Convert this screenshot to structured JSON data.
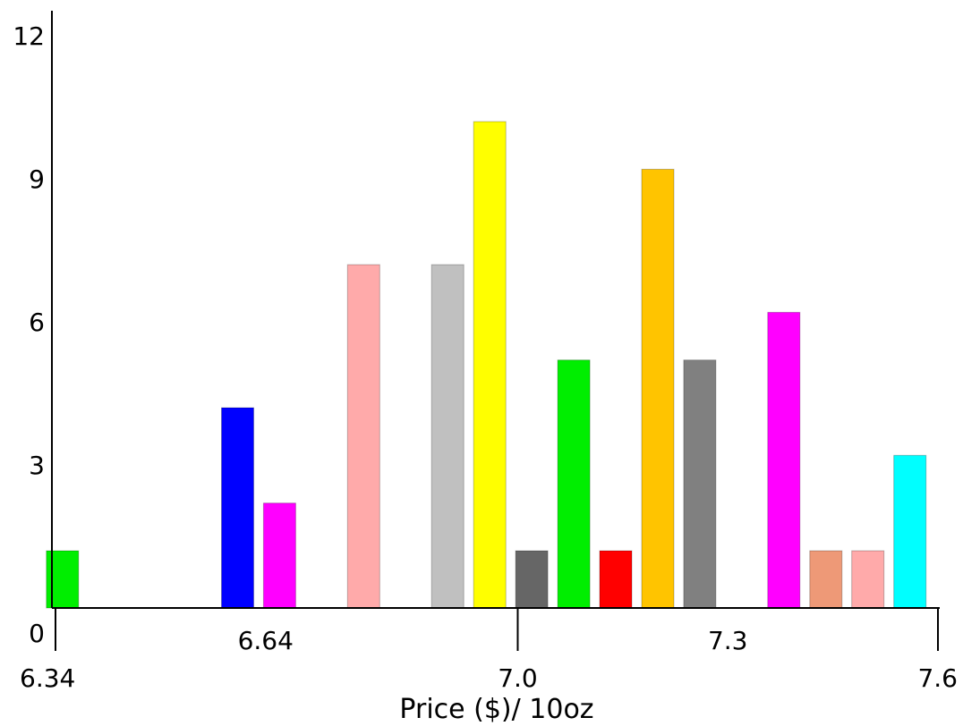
{
  "chart_data": {
    "type": "bar",
    "title": "",
    "xlabel": "Price ($)/ 10oz",
    "ylabel": "",
    "ylim": [
      0,
      12
    ],
    "xlim": [
      6.34,
      7.6
    ],
    "y_ticks": [
      "0",
      "3",
      "6",
      "9",
      "12"
    ],
    "x_ticks_lower": [
      "6.34",
      "7.0",
      "7.6"
    ],
    "x_ticks_upper": [
      "6.64",
      "7.3"
    ],
    "grid": false,
    "legend": "none",
    "bars": [
      {
        "x": 6.35,
        "value": 1,
        "color": "#00ee00"
      },
      {
        "x": 6.6,
        "value": 4,
        "color": "#0000ff"
      },
      {
        "x": 6.66,
        "value": 2,
        "color": "#ff00ff"
      },
      {
        "x": 6.78,
        "value": 7,
        "color": "#ffaaaa"
      },
      {
        "x": 6.9,
        "value": 7,
        "color": "#c0c0c0"
      },
      {
        "x": 6.96,
        "value": 10,
        "color": "#ffff00"
      },
      {
        "x": 7.02,
        "value": 1,
        "color": "#666666"
      },
      {
        "x": 7.08,
        "value": 5,
        "color": "#00ee00"
      },
      {
        "x": 7.14,
        "value": 1,
        "color": "#ff0000"
      },
      {
        "x": 7.2,
        "value": 9,
        "color": "#ffc400"
      },
      {
        "x": 7.26,
        "value": 5,
        "color": "#808080"
      },
      {
        "x": 7.38,
        "value": 6,
        "color": "#ff00ff"
      },
      {
        "x": 7.44,
        "value": 1,
        "color": "#ee9977"
      },
      {
        "x": 7.5,
        "value": 1,
        "color": "#ffaaaa"
      },
      {
        "x": 7.56,
        "value": 3,
        "color": "#00ffff"
      }
    ]
  }
}
